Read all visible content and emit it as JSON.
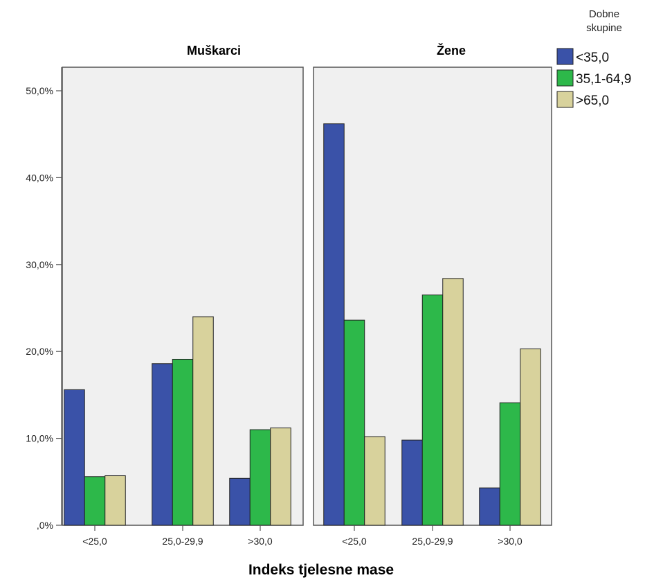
{
  "chart_data": {
    "type": "bar",
    "xlabel": "Indeks tjelesne mase",
    "ylabel": "",
    "ylim": [
      0,
      50
    ],
    "y_ticks": [
      "50,0%",
      "40,0%",
      "30,0%",
      "20,0%",
      "10,0%",
      ",0%"
    ],
    "y_tick_values": [
      50,
      40,
      30,
      20,
      10,
      0
    ],
    "grid": false,
    "legend": {
      "title_lines": [
        "Dobne",
        "skupine"
      ],
      "placement": "top-right"
    },
    "series_meta": [
      {
        "name": "<35,0",
        "color": "#3a52a8"
      },
      {
        "name": "35,1-64,9",
        "color": "#2db84a"
      },
      {
        "name": ">65,0",
        "color": "#d8d29c"
      }
    ],
    "panels": [
      {
        "title": "Muškarci",
        "categories": [
          "<25,0",
          "25,0-29,9",
          ">30,0"
        ],
        "series": [
          {
            "name": "<35,0",
            "values": [
              15.6,
              18.6,
              5.4
            ]
          },
          {
            "name": "35,1-64,9",
            "values": [
              5.6,
              19.1,
              11.0
            ]
          },
          {
            "name": ">65,0",
            "values": [
              5.7,
              24.0,
              11.2
            ]
          }
        ]
      },
      {
        "title": "Žene",
        "categories": [
          "<25,0",
          "25,0-29,9",
          ">30,0"
        ],
        "series": [
          {
            "name": "<35,0",
            "values": [
              46.2,
              9.8,
              4.3
            ]
          },
          {
            "name": "35,1-64,9",
            "values": [
              23.6,
              26.5,
              14.1
            ]
          },
          {
            "name": ">65,0",
            "values": [
              10.2,
              28.4,
              20.3
            ]
          }
        ]
      }
    ]
  },
  "colors": {
    "panel_background": "#f0f0f0",
    "frame": "#555555",
    "bar_outline": "#222222"
  }
}
